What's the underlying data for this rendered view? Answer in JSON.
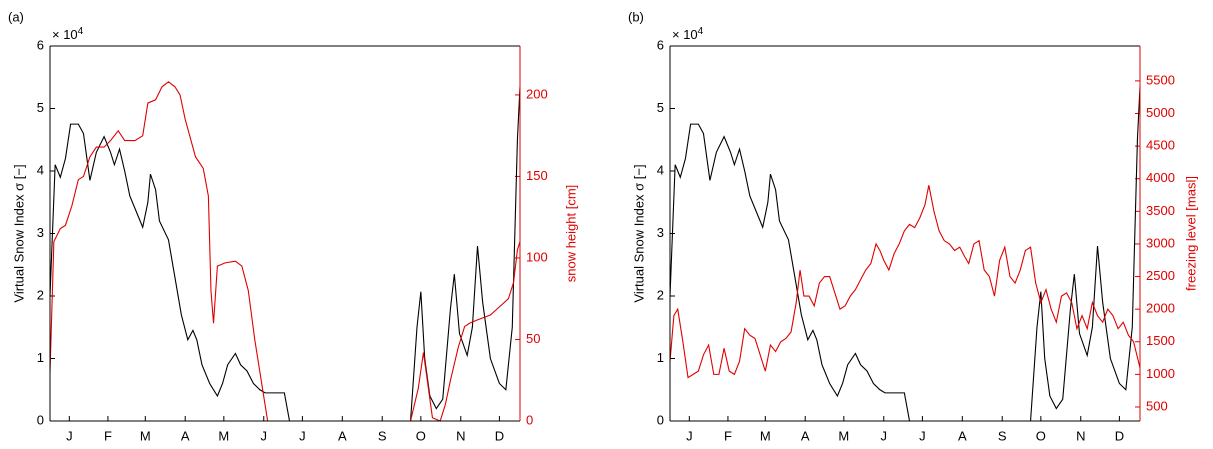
{
  "chart_data": [
    {
      "type": "line",
      "panel_label": "(a)",
      "y_label": "Virtual Snow Index σ [−]",
      "y2_label": "snow height [cm]",
      "y_multiplier": "× 10",
      "y_multiplier_exp": "4",
      "xlim": [
        0,
        365
      ],
      "xticks": [
        {
          "value": 15,
          "label": "J"
        },
        {
          "value": 45,
          "label": "F"
        },
        {
          "value": 74,
          "label": "M"
        },
        {
          "value": 105,
          "label": "A"
        },
        {
          "value": 135,
          "label": "M"
        },
        {
          "value": 166,
          "label": "J"
        },
        {
          "value": 196,
          "label": "J"
        },
        {
          "value": 227,
          "label": "A"
        },
        {
          "value": 258,
          "label": "S"
        },
        {
          "value": 288,
          "label": "O"
        },
        {
          "value": 319,
          "label": "N"
        },
        {
          "value": 349,
          "label": "D"
        }
      ],
      "ylim": [
        0,
        6
      ],
      "yticks": [
        0,
        1,
        2,
        3,
        4,
        5,
        6
      ],
      "y2lim": [
        0,
        230
      ],
      "y2ticks": [
        0,
        50,
        100,
        150,
        200
      ],
      "y2color": "#e00000",
      "series": [
        {
          "color": "#000000",
          "x": [
            0,
            4,
            8,
            12,
            16,
            22,
            26,
            31,
            36,
            42,
            47,
            50,
            54,
            58,
            62,
            68,
            72,
            76,
            78,
            82,
            85,
            92,
            97,
            102,
            107,
            111,
            114,
            118,
            124,
            130,
            134,
            138,
            144,
            148,
            153,
            158,
            163,
            167,
            182,
            186,
            280,
            285,
            288,
            291,
            295,
            300,
            305,
            311,
            314,
            318,
            324,
            328,
            332,
            336,
            342,
            349,
            354,
            359,
            363,
            365
          ],
          "values": [
            2.0,
            4.1,
            3.9,
            4.2,
            4.75,
            4.75,
            4.6,
            3.85,
            4.3,
            4.55,
            4.3,
            4.1,
            4.35,
            4.0,
            3.6,
            3.3,
            3.1,
            3.5,
            3.95,
            3.7,
            3.2,
            2.9,
            2.3,
            1.7,
            1.3,
            1.45,
            1.3,
            0.9,
            0.6,
            0.4,
            0.6,
            0.9,
            1.08,
            0.9,
            0.8,
            0.6,
            0.5,
            0.45,
            0.45,
            0,
            0,
            1.5,
            2.07,
            1.0,
            0.4,
            0.2,
            0.35,
            1.8,
            2.35,
            1.4,
            1.05,
            1.5,
            2.8,
            1.9,
            1.0,
            0.6,
            0.5,
            1.5,
            4.5,
            5.35
          ]
        },
        {
          "color": "#e00000",
          "axis": "y2",
          "x": [
            0,
            3,
            8,
            12,
            17,
            22,
            26,
            31,
            36,
            42,
            47,
            53,
            58,
            66,
            72,
            76,
            82,
            87,
            92,
            97,
            101,
            105,
            113,
            119,
            123,
            125,
            127,
            130,
            136,
            144,
            149,
            154,
            159,
            165,
            169,
            280,
            286,
            290,
            293,
            297,
            303,
            307,
            311,
            317,
            322,
            326,
            332,
            342,
            349,
            356,
            360,
            363,
            365
          ],
          "values": [
            30,
            110,
            118,
            120,
            132,
            148,
            150,
            162,
            168,
            168,
            172,
            178,
            172,
            172,
            175,
            195,
            197,
            205,
            208,
            205,
            200,
            185,
            162,
            155,
            138,
            80,
            60,
            95,
            97,
            98,
            95,
            80,
            50,
            20,
            0,
            0,
            20,
            42,
            25,
            2,
            0,
            10,
            25,
            45,
            58,
            60,
            62,
            65,
            70,
            75,
            85,
            105,
            110
          ]
        }
      ]
    },
    {
      "type": "line",
      "panel_label": "(b)",
      "y_label": "Virtual Snow Index σ [−]",
      "y2_label": "freezing level [masl]",
      "y_multiplier": "× 10",
      "y_multiplier_exp": "4",
      "xlim": [
        0,
        365
      ],
      "xticks": [
        {
          "value": 15,
          "label": "J"
        },
        {
          "value": 45,
          "label": "F"
        },
        {
          "value": 74,
          "label": "M"
        },
        {
          "value": 105,
          "label": "A"
        },
        {
          "value": 135,
          "label": "M"
        },
        {
          "value": 166,
          "label": "J"
        },
        {
          "value": 196,
          "label": "J"
        },
        {
          "value": 227,
          "label": "A"
        },
        {
          "value": 258,
          "label": "S"
        },
        {
          "value": 288,
          "label": "O"
        },
        {
          "value": 319,
          "label": "N"
        },
        {
          "value": 349,
          "label": "D"
        }
      ],
      "ylim": [
        0,
        6
      ],
      "yticks": [
        0,
        1,
        2,
        3,
        4,
        5,
        6
      ],
      "y2lim": [
        285,
        6035
      ],
      "y2ticks": [
        500,
        1000,
        1500,
        2000,
        2500,
        3000,
        3500,
        4000,
        4500,
        5000,
        5500
      ],
      "y2color": "#e00000",
      "series": [
        {
          "color": "#000000",
          "x": [
            0,
            4,
            8,
            12,
            16,
            22,
            26,
            31,
            36,
            42,
            47,
            50,
            54,
            58,
            62,
            68,
            72,
            76,
            78,
            82,
            85,
            92,
            97,
            102,
            107,
            111,
            114,
            118,
            124,
            130,
            134,
            138,
            144,
            148,
            153,
            158,
            163,
            167,
            182,
            186,
            280,
            285,
            288,
            291,
            295,
            300,
            305,
            311,
            314,
            318,
            324,
            328,
            332,
            336,
            342,
            349,
            354,
            359,
            363,
            365
          ],
          "values": [
            2.0,
            4.1,
            3.9,
            4.2,
            4.75,
            4.75,
            4.6,
            3.85,
            4.3,
            4.55,
            4.3,
            4.1,
            4.35,
            4.0,
            3.6,
            3.3,
            3.1,
            3.5,
            3.95,
            3.7,
            3.2,
            2.9,
            2.3,
            1.7,
            1.3,
            1.45,
            1.3,
            0.9,
            0.6,
            0.4,
            0.6,
            0.9,
            1.08,
            0.9,
            0.8,
            0.6,
            0.5,
            0.45,
            0.45,
            0,
            0,
            1.5,
            2.07,
            1.0,
            0.4,
            0.2,
            0.35,
            1.8,
            2.35,
            1.4,
            1.05,
            1.5,
            2.8,
            1.9,
            1.0,
            0.6,
            0.5,
            1.5,
            4.5,
            5.35
          ]
        },
        {
          "color": "#e00000",
          "axis": "y2",
          "x": [
            0,
            3,
            6,
            10,
            14,
            18,
            22,
            26,
            30,
            34,
            38,
            42,
            46,
            50,
            54,
            58,
            62,
            66,
            70,
            74,
            78,
            82,
            86,
            90,
            94,
            98,
            101,
            104,
            108,
            112,
            116,
            120,
            124,
            128,
            132,
            136,
            140,
            144,
            148,
            152,
            156,
            160,
            163,
            166,
            170,
            174,
            178,
            182,
            186,
            190,
            194,
            198,
            201,
            205,
            209,
            213,
            217,
            221,
            225,
            229,
            232,
            236,
            240,
            244,
            248,
            252,
            256,
            260,
            264,
            268,
            272,
            276,
            280,
            284,
            288,
            292,
            296,
            300,
            304,
            308,
            312,
            316,
            320,
            324,
            328,
            332,
            336,
            340,
            344,
            348,
            352,
            356,
            360,
            365
          ],
          "values": [
            1200,
            1900,
            2000,
            1500,
            950,
            1000,
            1050,
            1300,
            1450,
            1000,
            1000,
            1400,
            1050,
            1000,
            1200,
            1700,
            1600,
            1550,
            1300,
            1050,
            1450,
            1350,
            1500,
            1550,
            1650,
            2100,
            2600,
            2200,
            2200,
            2050,
            2400,
            2500,
            2500,
            2250,
            2000,
            2050,
            2200,
            2300,
            2450,
            2600,
            2700,
            3000,
            2900,
            2750,
            2600,
            2850,
            3000,
            3200,
            3300,
            3250,
            3400,
            3600,
            3900,
            3500,
            3200,
            3050,
            3000,
            2900,
            2950,
            2800,
            2700,
            3000,
            3050,
            2600,
            2500,
            2200,
            2750,
            2950,
            2500,
            2400,
            2600,
            2900,
            2950,
            2400,
            2100,
            2300,
            2000,
            1800,
            2200,
            2250,
            2100,
            1700,
            1900,
            1700,
            2100,
            1900,
            1800,
            2000,
            1900,
            1700,
            1800,
            1600,
            1500,
            1100
          ]
        }
      ]
    }
  ]
}
